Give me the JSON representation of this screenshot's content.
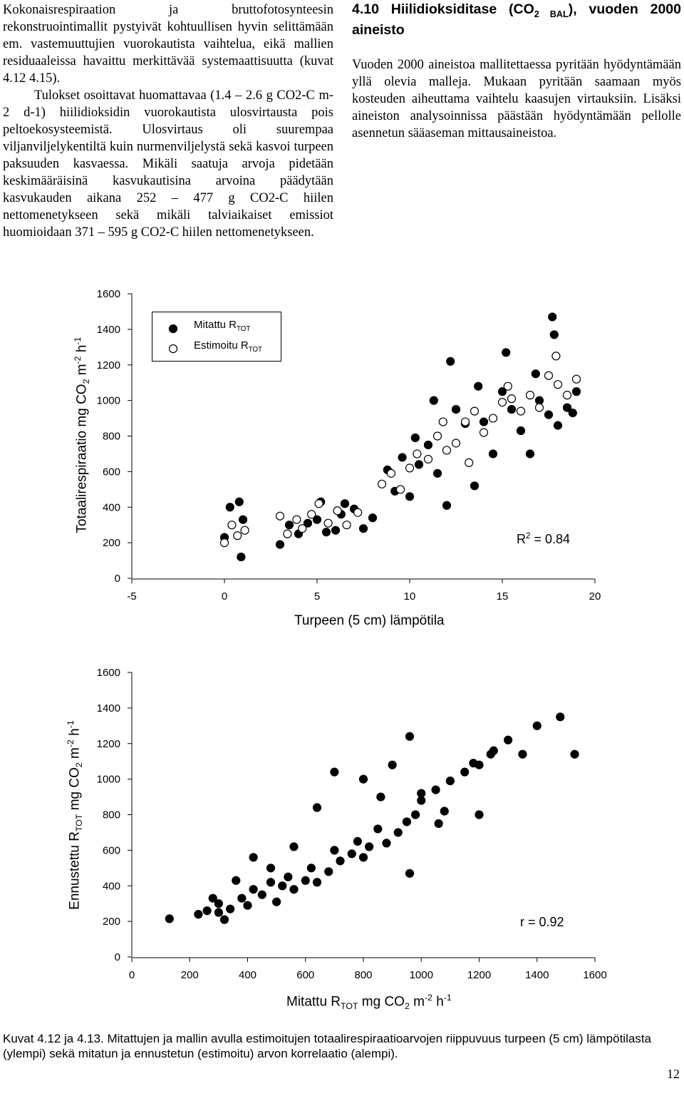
{
  "left_column": [
    "Kokonaisrespiraation ja bruttofotosynteesin rekonstruointimallit pystyivät kohtuullisen hyvin selittämään em. vastemuuttujien vuorokautista vaihtelua, eikä mallien residuaaleissa havaittu merkittävää systemaattisuutta (kuvat 4.12 4.15).",
    "Tulokset osoittavat huomattavaa (1.4 – 2.6 g CO2-C m-2 d-1) hiilidioksidin vuorokautista ulosvirtausta pois peltoekosysteemistä. Ulosvirtaus oli suurempaa viljanviljelykentiltä kuin nurmenviljelystä sekä kasvoi turpeen paksuuden kasvaessa. Mikäli saatuja arvoja pidetään keskimääräisinä kasvukautisina arvoina päädytään kasvukauden aikana 252 – 477 g CO2-C hiilen nettomenetykseen sekä mikäli talviaikaiset emissiot huomioidaan 371 – 595 g CO2-C hiilen nettomenetykseen."
  ],
  "right_column": {
    "heading": [
      "4.10 Hiilidioksiditase (CO",
      "2 BAL",
      "), vuoden 2000 aineisto"
    ],
    "paragraph": "Vuoden 2000 aineistoa mallitettaessa pyritään hyödyntämään yllä olevia malleja. Mukaan pyritään saamaan myös kosteuden aiheuttama vaihtelu kaasujen virtauksiin. Lisäksi aineiston analysoinnissa päästään hyödyntämään pellolle asennetun sääaseman mittausaineistoa."
  },
  "chart_data": [
    {
      "type": "scatter",
      "ylabel": [
        "Totaalirespiraatio mg CO",
        "2",
        " m",
        "-2",
        " h",
        "-1"
      ],
      "xlabel": "Turpeen (5 cm) lämpötila",
      "annotation": [
        "R",
        "2",
        " = 0.84"
      ],
      "xlim": [
        -5,
        20
      ],
      "ylim": [
        0,
        1600
      ],
      "xticks": [
        -5,
        0,
        5,
        10,
        15,
        20
      ],
      "yticks": [
        0,
        200,
        400,
        600,
        800,
        1000,
        1200,
        1400,
        1600
      ],
      "series": [
        {
          "name": "Mitattu R",
          "name_sub": "TOT",
          "color": "#000000",
          "filled": true,
          "x": [
            0,
            0.3,
            0.8,
            1,
            0.9,
            3,
            3.5,
            4,
            4.5,
            5,
            5.5,
            6,
            6.5,
            7,
            7.5,
            8,
            5.2,
            6.3,
            8.8,
            9.2,
            9.6,
            10,
            10.5,
            11,
            11.5,
            12,
            12.5,
            13,
            13.5,
            14,
            14.5,
            15,
            15.5,
            16,
            16.5,
            17,
            17.5,
            18,
            18.5,
            19,
            15.2,
            17.7,
            17.8,
            18.8,
            16.8,
            12.2,
            11.3,
            10.3,
            13.7
          ],
          "values": [
            230,
            400,
            430,
            330,
            120,
            190,
            300,
            250,
            310,
            330,
            260,
            270,
            420,
            390,
            280,
            340,
            430,
            360,
            610,
            490,
            680,
            460,
            640,
            750,
            590,
            410,
            950,
            870,
            520,
            880,
            700,
            1050,
            950,
            830,
            700,
            1000,
            920,
            860,
            960,
            1050,
            1270,
            1470,
            1370,
            930,
            1150,
            1220,
            1000,
            790,
            1080
          ]
        },
        {
          "name": "Estimoitu R",
          "name_sub": "TOT",
          "color": "#000000",
          "filled": false,
          "x": [
            0,
            0.4,
            0.7,
            1.1,
            3,
            3.4,
            3.9,
            4.2,
            4.7,
            5.1,
            5.6,
            6.1,
            6.6,
            7.2,
            8.5,
            9,
            9.5,
            10,
            10.4,
            11,
            11.5,
            12,
            12.5,
            13,
            13.5,
            14,
            14.5,
            15,
            15.5,
            16,
            16.5,
            17,
            17.5,
            18,
            18.5,
            19,
            17.9,
            11.8,
            13.2,
            15.3
          ],
          "values": [
            200,
            300,
            240,
            270,
            350,
            250,
            330,
            280,
            360,
            420,
            310,
            380,
            300,
            370,
            530,
            590,
            500,
            620,
            700,
            670,
            800,
            720,
            760,
            880,
            940,
            820,
            900,
            990,
            1010,
            940,
            1030,
            960,
            1140,
            1090,
            1030,
            1120,
            1250,
            880,
            650,
            1080
          ]
        }
      ]
    },
    {
      "type": "scatter",
      "ylabel": [
        "Ennustettu R",
        "TOT",
        " mg CO",
        "2",
        " m",
        "-2",
        " h",
        "-1"
      ],
      "xlabel": [
        "Mitattu R",
        "TOT",
        " mg CO",
        "2",
        " m",
        "-2",
        " h",
        "-1"
      ],
      "annotation": [
        "r = 0.92"
      ],
      "xlim": [
        0,
        1600
      ],
      "ylim": [
        0,
        1600
      ],
      "xticks": [
        0,
        200,
        400,
        600,
        800,
        1000,
        1200,
        1400,
        1600
      ],
      "yticks": [
        0,
        200,
        400,
        600,
        800,
        1000,
        1200,
        1400,
        1600
      ],
      "series": [
        {
          "color": "#000000",
          "filled": true,
          "x": [
            130,
            230,
            260,
            300,
            320,
            340,
            380,
            400,
            420,
            450,
            480,
            500,
            520,
            540,
            560,
            600,
            620,
            640,
            680,
            700,
            720,
            760,
            780,
            800,
            820,
            850,
            880,
            920,
            950,
            980,
            1000,
            1050,
            1080,
            1100,
            1150,
            1200,
            1250,
            1300,
            1350,
            1400,
            1480,
            1530,
            1240,
            1180,
            960,
            900,
            800,
            700,
            640,
            560,
            480,
            420,
            360,
            300,
            280,
            1000,
            1060,
            1200,
            960,
            860
          ],
          "values": [
            215,
            240,
            260,
            300,
            210,
            270,
            330,
            290,
            380,
            350,
            420,
            310,
            400,
            450,
            380,
            430,
            500,
            420,
            480,
            600,
            540,
            580,
            650,
            560,
            620,
            720,
            640,
            700,
            760,
            800,
            880,
            940,
            820,
            990,
            1040,
            1080,
            1160,
            1220,
            1140,
            1300,
            1350,
            1140,
            1140,
            1090,
            1240,
            1080,
            1000,
            1040,
            840,
            620,
            500,
            560,
            430,
            250,
            330,
            920,
            750,
            800,
            470,
            900
          ]
        }
      ]
    }
  ],
  "caption": "Kuvat 4.12 ja 4.13. Mitattujen ja mallin avulla estimoitujen totaalirespiraatioarvojen riippuvuus turpeen (5 cm) lämpötilasta (ylempi) sekä mitatun ja ennustetun (estimoitu) arvon korrelaatio (alempi).",
  "page_number": "12"
}
